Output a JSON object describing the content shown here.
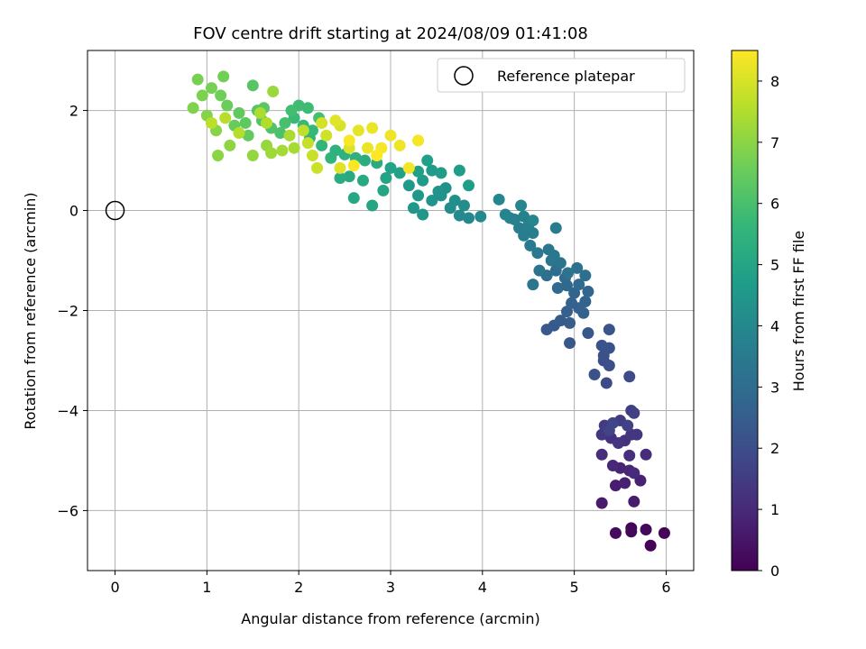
{
  "chart_data": {
    "type": "scatter",
    "title": "FOV centre drift starting at 2024/08/09 01:41:08",
    "xlabel": "Angular distance from reference (arcmin)",
    "ylabel": "Rotation from reference (arcmin)",
    "xlim": [
      -0.3,
      6.3
    ],
    "ylim": [
      -7.2,
      3.2
    ],
    "x_ticks": [
      0,
      1,
      2,
      3,
      4,
      5,
      6
    ],
    "y_ticks": [
      -6,
      -4,
      -2,
      0,
      2
    ],
    "grid": true,
    "legend": {
      "position": "top-right",
      "entries": [
        "Reference platepar"
      ]
    },
    "reference_point": {
      "x": 0,
      "y": 0
    },
    "colorbar": {
      "label": "Hours from first FF file",
      "min": 0,
      "max": 8.5,
      "ticks": [
        0,
        1,
        2,
        3,
        4,
        5,
        6,
        7,
        8
      ],
      "colormap": [
        "#440154",
        "#482878",
        "#3e4a89",
        "#31688e",
        "#26828e",
        "#1f9e89",
        "#35b779",
        "#6ece58",
        "#b5de2b",
        "#fde725"
      ]
    },
    "points": [
      [
        5.62,
        -6.35,
        0.1
      ],
      [
        5.62,
        -6.42,
        0.15
      ],
      [
        5.78,
        -6.38,
        0.2
      ],
      [
        5.83,
        -6.7,
        0.05
      ],
      [
        5.98,
        -6.45,
        0.1
      ],
      [
        5.45,
        -6.45,
        0.25
      ],
      [
        5.3,
        -5.85,
        0.6
      ],
      [
        5.65,
        -5.82,
        0.65
      ],
      [
        5.45,
        -5.5,
        0.7
      ],
      [
        5.55,
        -5.45,
        0.75
      ],
      [
        5.72,
        -5.4,
        0.8
      ],
      [
        5.5,
        -5.15,
        0.85
      ],
      [
        5.6,
        -5.2,
        0.9
      ],
      [
        5.42,
        -5.1,
        0.95
      ],
      [
        5.65,
        -5.25,
        1.0
      ],
      [
        5.78,
        -4.88,
        1.05
      ],
      [
        5.3,
        -4.88,
        1.1
      ],
      [
        5.6,
        -4.9,
        1.15
      ],
      [
        5.55,
        -4.6,
        1.2
      ],
      [
        5.4,
        -4.55,
        1.2
      ],
      [
        5.48,
        -4.65,
        1.3
      ],
      [
        5.62,
        -4.48,
        1.3
      ],
      [
        5.68,
        -4.48,
        1.35
      ],
      [
        5.3,
        -4.48,
        1.4
      ],
      [
        5.33,
        -4.3,
        1.45
      ],
      [
        5.5,
        -4.2,
        1.5
      ],
      [
        5.62,
        -4.0,
        1.55
      ],
      [
        5.65,
        -4.05,
        1.6
      ],
      [
        5.58,
        -4.3,
        1.65
      ],
      [
        5.38,
        -4.4,
        1.7
      ],
      [
        5.42,
        -4.25,
        1.75
      ],
      [
        5.6,
        -3.32,
        1.9
      ],
      [
        5.35,
        -3.45,
        1.95
      ],
      [
        5.32,
        -3.0,
        2.0
      ],
      [
        5.38,
        -3.1,
        2.05
      ],
      [
        5.32,
        -2.9,
        2.1
      ],
      [
        5.38,
        -2.75,
        2.15
      ],
      [
        5.3,
        -2.7,
        2.2
      ],
      [
        5.38,
        -2.38,
        2.25
      ],
      [
        5.22,
        -3.28,
        2.1
      ],
      [
        5.15,
        -2.45,
        2.3
      ],
      [
        4.95,
        -2.65,
        2.3
      ],
      [
        4.7,
        -2.38,
        2.35
      ],
      [
        4.78,
        -2.3,
        2.4
      ],
      [
        4.85,
        -2.2,
        2.45
      ],
      [
        4.95,
        -2.25,
        2.5
      ],
      [
        4.92,
        -2.02,
        2.55
      ],
      [
        5.05,
        -1.95,
        2.6
      ],
      [
        5.1,
        -2.05,
        2.6
      ],
      [
        4.97,
        -1.85,
        2.65
      ],
      [
        5.12,
        -1.82,
        2.7
      ],
      [
        5.0,
        -1.65,
        2.75
      ],
      [
        5.15,
        -1.62,
        2.8
      ],
      [
        4.92,
        -1.5,
        2.85
      ],
      [
        4.82,
        -1.55,
        2.9
      ],
      [
        5.05,
        -1.48,
        2.9
      ],
      [
        4.9,
        -1.35,
        2.95
      ],
      [
        4.8,
        -1.2,
        3.0
      ],
      [
        4.7,
        -1.3,
        3.05
      ],
      [
        5.12,
        -1.3,
        3.1
      ],
      [
        5.03,
        -1.15,
        3.15
      ],
      [
        4.93,
        -1.25,
        3.2
      ],
      [
        4.85,
        -1.05,
        3.25
      ],
      [
        4.62,
        -1.2,
        3.25
      ],
      [
        4.55,
        -1.48,
        3.3
      ],
      [
        4.75,
        -1.0,
        3.35
      ],
      [
        4.72,
        -0.78,
        3.4
      ],
      [
        4.78,
        -0.9,
        3.4
      ],
      [
        4.6,
        -0.85,
        3.45
      ],
      [
        4.52,
        -0.7,
        3.5
      ],
      [
        4.8,
        -0.35,
        3.55
      ],
      [
        4.55,
        -0.45,
        3.6
      ],
      [
        4.45,
        -0.5,
        3.6
      ],
      [
        4.4,
        -0.35,
        3.65
      ],
      [
        4.5,
        -0.3,
        3.7
      ],
      [
        4.35,
        -0.18,
        3.75
      ],
      [
        4.45,
        -0.12,
        3.75
      ],
      [
        4.3,
        -0.15,
        3.8
      ],
      [
        4.25,
        -0.08,
        3.85
      ],
      [
        4.42,
        0.1,
        3.9
      ],
      [
        4.55,
        -0.2,
        3.9
      ],
      [
        4.18,
        0.22,
        3.95
      ],
      [
        3.98,
        -0.12,
        4.0
      ],
      [
        3.85,
        -0.15,
        4.0
      ],
      [
        3.75,
        -0.1,
        4.05
      ],
      [
        3.8,
        0.1,
        4.1
      ],
      [
        3.65,
        0.05,
        4.15
      ],
      [
        3.7,
        0.2,
        4.2
      ],
      [
        3.55,
        0.3,
        4.25
      ],
      [
        3.6,
        0.45,
        4.3
      ],
      [
        3.52,
        0.38,
        4.35
      ],
      [
        3.45,
        0.2,
        4.4
      ],
      [
        3.35,
        -0.08,
        4.45
      ],
      [
        3.25,
        0.05,
        4.45
      ],
      [
        3.3,
        0.3,
        4.5
      ],
      [
        3.2,
        0.5,
        4.55
      ],
      [
        3.35,
        0.6,
        4.6
      ],
      [
        3.45,
        0.8,
        4.6
      ],
      [
        3.55,
        0.75,
        4.65
      ],
      [
        3.75,
        0.8,
        4.7
      ],
      [
        3.85,
        0.5,
        4.7
      ],
      [
        3.4,
        1.0,
        4.75
      ],
      [
        3.3,
        0.78,
        4.8
      ],
      [
        3.1,
        0.75,
        4.85
      ],
      [
        3.0,
        0.85,
        4.9
      ],
      [
        2.95,
        0.65,
        4.95
      ],
      [
        2.8,
        0.1,
        5.0
      ],
      [
        2.92,
        0.4,
        5.0
      ],
      [
        2.6,
        0.25,
        5.05
      ],
      [
        2.7,
        0.6,
        5.1
      ],
      [
        2.55,
        0.68,
        5.15
      ],
      [
        2.45,
        0.65,
        5.2
      ],
      [
        2.85,
        0.95,
        5.25
      ],
      [
        2.72,
        1.0,
        5.3
      ],
      [
        2.62,
        1.05,
        5.35
      ],
      [
        2.5,
        1.12,
        5.4
      ],
      [
        2.4,
        1.2,
        5.45
      ],
      [
        2.35,
        1.05,
        5.5
      ],
      [
        2.25,
        1.3,
        5.55
      ],
      [
        2.12,
        1.45,
        5.6
      ],
      [
        2.15,
        1.6,
        5.65
      ],
      [
        2.05,
        1.7,
        5.7
      ],
      [
        1.95,
        1.85,
        5.75
      ],
      [
        2.1,
        2.05,
        5.8
      ],
      [
        2.0,
        2.1,
        5.85
      ],
      [
        1.92,
        2.0,
        5.9
      ],
      [
        2.22,
        1.85,
        5.95
      ],
      [
        1.85,
        1.75,
        6.0
      ],
      [
        1.8,
        1.55,
        6.05
      ],
      [
        1.7,
        1.65,
        6.1
      ],
      [
        1.6,
        1.8,
        6.15
      ],
      [
        1.55,
        2.0,
        6.2
      ],
      [
        1.5,
        2.5,
        6.25
      ],
      [
        1.62,
        2.05,
        6.3
      ],
      [
        1.42,
        1.75,
        6.35
      ],
      [
        1.35,
        1.95,
        6.4
      ],
      [
        1.45,
        1.5,
        6.45
      ],
      [
        1.3,
        1.7,
        6.5
      ],
      [
        1.22,
        2.1,
        6.55
      ],
      [
        1.15,
        2.3,
        6.6
      ],
      [
        1.18,
        2.68,
        6.65
      ],
      [
        1.05,
        2.45,
        6.7
      ],
      [
        0.9,
        2.62,
        6.75
      ],
      [
        0.95,
        2.3,
        6.8
      ],
      [
        0.85,
        2.05,
        6.85
      ],
      [
        1.0,
        1.9,
        6.9
      ],
      [
        1.1,
        1.6,
        6.95
      ],
      [
        1.12,
        1.1,
        7.0
      ],
      [
        1.25,
        1.3,
        7.05
      ],
      [
        1.5,
        1.1,
        7.1
      ],
      [
        1.65,
        1.3,
        7.15
      ],
      [
        1.72,
        2.38,
        7.2
      ],
      [
        1.7,
        1.15,
        7.25
      ],
      [
        1.82,
        1.2,
        7.3
      ],
      [
        1.95,
        1.25,
        7.35
      ],
      [
        1.9,
        1.5,
        7.4
      ],
      [
        1.58,
        1.95,
        7.45
      ],
      [
        1.65,
        1.75,
        7.5
      ],
      [
        1.35,
        1.55,
        7.55
      ],
      [
        1.2,
        1.85,
        7.6
      ],
      [
        1.05,
        1.75,
        7.65
      ],
      [
        2.05,
        1.6,
        7.7
      ],
      [
        2.1,
        1.35,
        7.75
      ],
      [
        2.15,
        1.1,
        7.8
      ],
      [
        2.2,
        0.85,
        7.85
      ],
      [
        2.3,
        1.5,
        7.9
      ],
      [
        2.25,
        1.75,
        7.95
      ],
      [
        2.45,
        1.7,
        8.0
      ],
      [
        2.55,
        1.25,
        8.05
      ],
      [
        2.45,
        0.85,
        8.1
      ],
      [
        2.4,
        1.8,
        8.15
      ],
      [
        2.65,
        1.6,
        8.2
      ],
      [
        2.8,
        1.65,
        8.25
      ],
      [
        2.75,
        1.25,
        8.25
      ],
      [
        3.0,
        1.5,
        8.3
      ],
      [
        3.1,
        1.3,
        8.3
      ],
      [
        3.2,
        0.85,
        8.35
      ],
      [
        3.3,
        1.4,
        8.4
      ],
      [
        2.9,
        1.25,
        8.4
      ],
      [
        2.6,
        0.9,
        8.45
      ],
      [
        2.55,
        1.4,
        8.45
      ],
      [
        2.85,
        1.1,
        8.5
      ]
    ]
  }
}
